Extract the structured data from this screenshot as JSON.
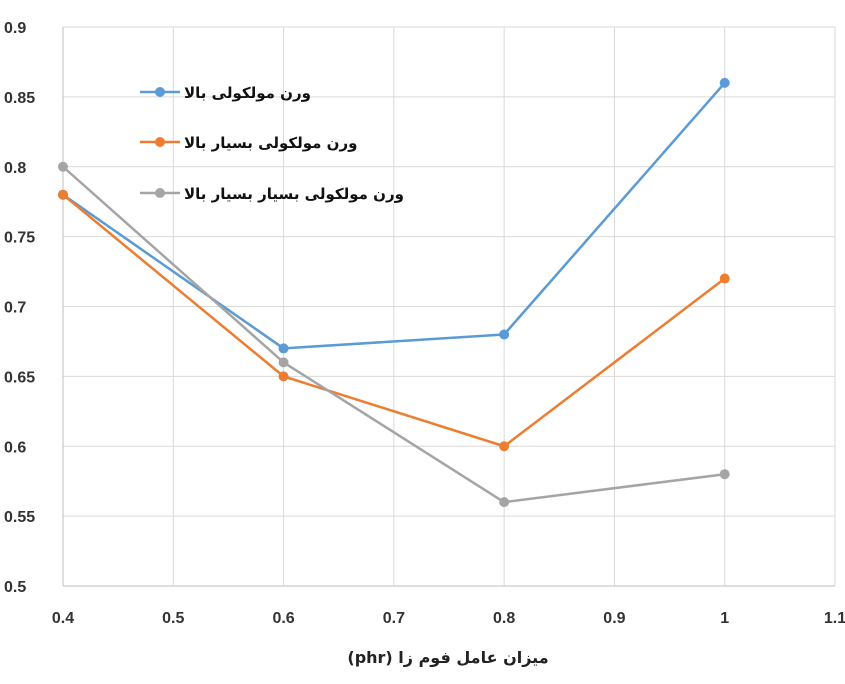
{
  "chart_data": {
    "type": "line",
    "xlabel": "میزان عامل فوم زا (phr)",
    "ylabel": "",
    "xlim": [
      0.4,
      1.1
    ],
    "ylim": [
      0.5,
      0.9
    ],
    "x_ticks": [
      "0.4",
      "0.5",
      "0.6",
      "0.7",
      "0.8",
      "0.9",
      "1",
      "1.1"
    ],
    "y_ticks": [
      "0.5",
      "0.55",
      "0.6",
      "0.65",
      "0.7",
      "0.75",
      "0.8",
      "0.85",
      "0.9"
    ],
    "grid": true,
    "legend_position": "top-left",
    "series": [
      {
        "name": "ورن مولکولی بالا",
        "color": "#5b9bd5",
        "x": [
          0.4,
          0.6,
          0.8,
          1.0
        ],
        "y": [
          0.78,
          0.67,
          0.68,
          0.86
        ]
      },
      {
        "name": "ورن مولکولی بسیار بالا",
        "color": "#ed7d31",
        "x": [
          0.4,
          0.6,
          0.8,
          1.0
        ],
        "y": [
          0.78,
          0.65,
          0.6,
          0.72
        ]
      },
      {
        "name": "ورن مولکولی بسیار بسیار بالا",
        "color": "#a5a5a5",
        "x": [
          0.4,
          0.6,
          0.8,
          1.0
        ],
        "y": [
          0.8,
          0.66,
          0.56,
          0.58
        ]
      }
    ]
  }
}
